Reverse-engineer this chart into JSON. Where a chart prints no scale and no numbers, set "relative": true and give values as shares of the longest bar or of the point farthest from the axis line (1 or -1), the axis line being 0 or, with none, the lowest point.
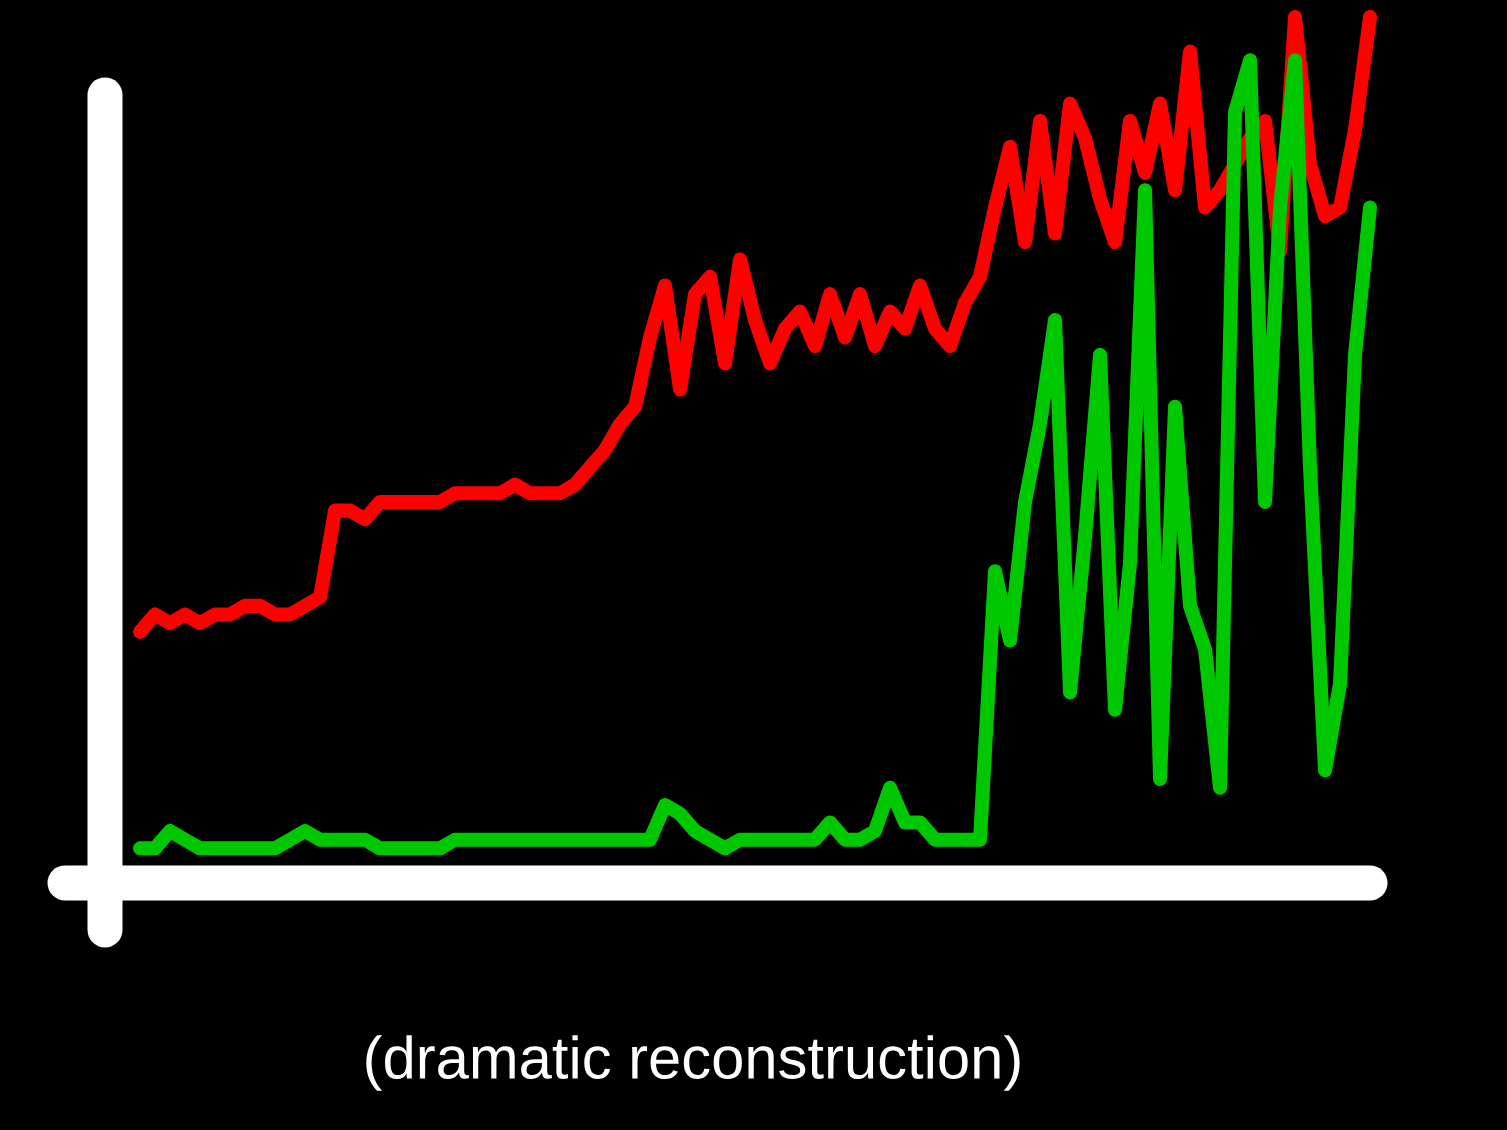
{
  "chart_data": {
    "type": "line",
    "relative": true,
    "categories": [
      null,
      null,
      null,
      null,
      null,
      null,
      null,
      null,
      null,
      null,
      null,
      null,
      null,
      null,
      null,
      null,
      null,
      null,
      null,
      null,
      null,
      null,
      null,
      null,
      null,
      null,
      null,
      null,
      null,
      null,
      null,
      null,
      null,
      null,
      null,
      null,
      null,
      null,
      null,
      null,
      null,
      null,
      null,
      null,
      null,
      null,
      null,
      null,
      null,
      null,
      null,
      null,
      null,
      null,
      null,
      null,
      null,
      null,
      null,
      null,
      null,
      null,
      null,
      null,
      null,
      null,
      null,
      null,
      null,
      null,
      null,
      null,
      null,
      null,
      null,
      null,
      null,
      null,
      null,
      null,
      null,
      null,
      null
    ],
    "series": [
      {
        "color": "#ff0000",
        "values": [
          0.29,
          0.31,
          0.3,
          0.31,
          0.3,
          0.31,
          0.31,
          0.32,
          0.32,
          0.31,
          0.31,
          0.32,
          0.33,
          0.43,
          0.43,
          0.42,
          0.44,
          0.44,
          0.44,
          0.44,
          0.44,
          0.45,
          0.45,
          0.45,
          0.45,
          0.46,
          0.45,
          0.45,
          0.45,
          0.46,
          0.48,
          0.5,
          0.53,
          0.55,
          0.63,
          0.69,
          0.57,
          0.68,
          0.7,
          0.6,
          0.72,
          0.65,
          0.6,
          0.64,
          0.66,
          0.62,
          0.68,
          0.63,
          0.68,
          0.62,
          0.66,
          0.64,
          0.69,
          0.64,
          0.62,
          0.67,
          0.7,
          0.78,
          0.85,
          0.74,
          0.88,
          0.75,
          0.9,
          0.86,
          0.79,
          0.74,
          0.88,
          0.82,
          0.9,
          0.8,
          0.96,
          0.78,
          0.8,
          0.83,
          0.86,
          0.88,
          0.73,
          1,
          0.83,
          0.77,
          0.78,
          0.87,
          1
        ]
      },
      {
        "color": "#00c800",
        "values": [
          0.04,
          0.04,
          0.06,
          0.05,
          0.04,
          0.04,
          0.04,
          0.04,
          0.04,
          0.04,
          0.05,
          0.06,
          0.05,
          0.05,
          0.05,
          0.05,
          0.04,
          0.04,
          0.04,
          0.04,
          0.04,
          0.05,
          0.05,
          0.05,
          0.05,
          0.05,
          0.05,
          0.05,
          0.05,
          0.05,
          0.05,
          0.05,
          0.05,
          0.05,
          0.05,
          0.09,
          0.08,
          0.06,
          0.05,
          0.04,
          0.05,
          0.05,
          0.05,
          0.05,
          0.05,
          0.05,
          0.07,
          0.05,
          0.05,
          0.06,
          0.11,
          0.07,
          0.07,
          0.05,
          0.05,
          0.05,
          0.05,
          0.36,
          0.28,
          0.44,
          0.53,
          0.65,
          0.22,
          0.4,
          0.61,
          0.2,
          0.37,
          0.8,
          0.12,
          0.55,
          0.32,
          0.27,
          0.11,
          0.89,
          0.95,
          0.44,
          0.78,
          0.95,
          0.48,
          0.13,
          0.23,
          0.61,
          0.78
        ]
      }
    ],
    "annotations": [
      "(dramatic reconstruction)"
    ]
  }
}
